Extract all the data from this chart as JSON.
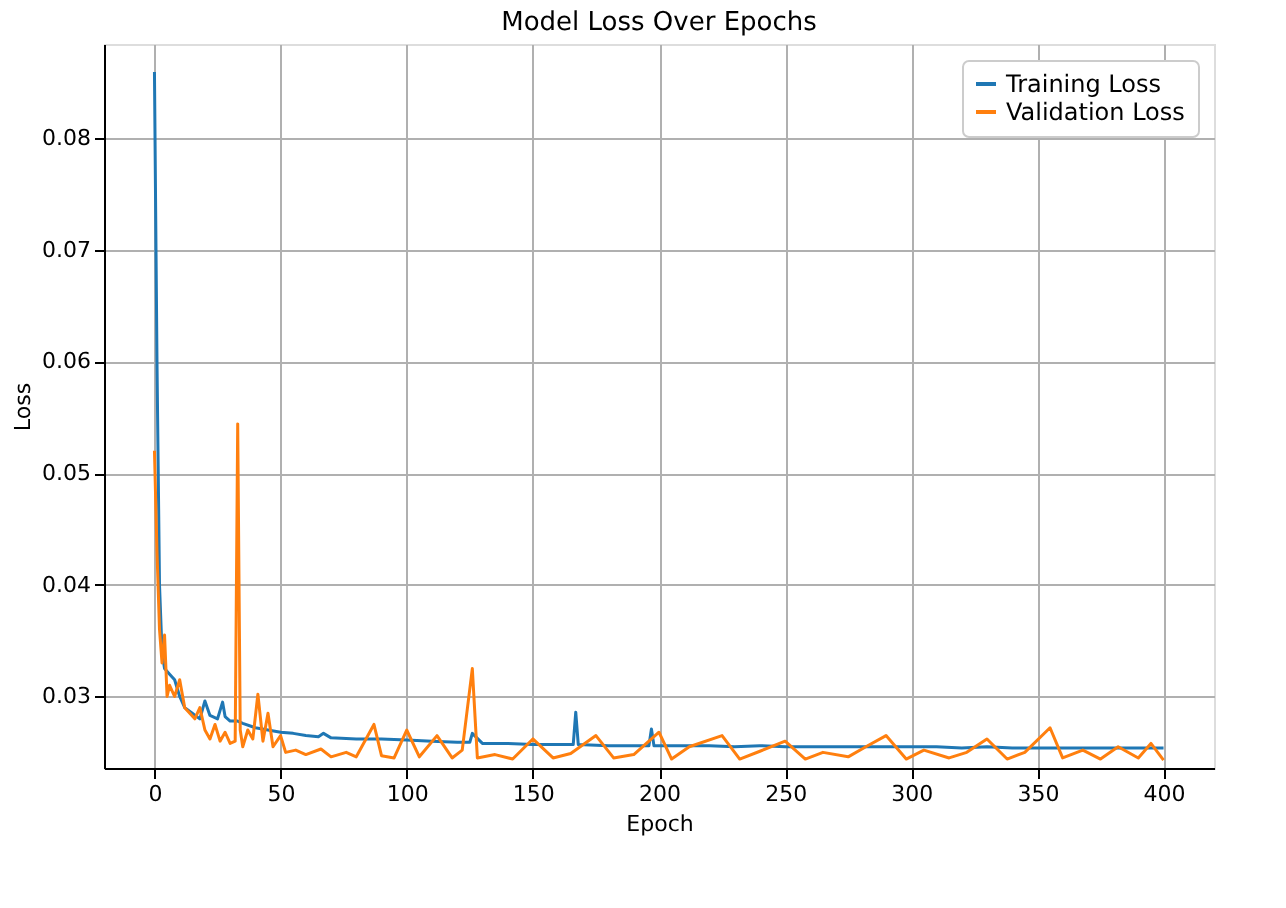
{
  "chart_data": {
    "type": "line",
    "title": "Model Loss Over Epochs",
    "xlabel": "Epoch",
    "ylabel": "Loss",
    "xlim": [
      -20,
      420
    ],
    "xticks": [
      0,
      50,
      100,
      150,
      200,
      250,
      300,
      350,
      400
    ],
    "ylim": [
      0.0236,
      0.0884
    ],
    "yticks": [
      0.03,
      0.04,
      0.05,
      0.06,
      0.07,
      0.08
    ],
    "grid": true,
    "legend": "top right",
    "line_style": "solid",
    "marker": "none",
    "series": [
      {
        "name": "Training Loss",
        "color": "#1f77b4",
        "x": [
          0,
          1,
          2,
          3,
          4,
          6,
          8,
          10,
          12,
          15,
          18,
          20,
          22,
          25,
          27,
          28,
          30,
          33,
          35,
          40,
          45,
          50,
          55,
          60,
          65,
          67,
          70,
          80,
          90,
          100,
          110,
          120,
          125,
          126,
          130,
          140,
          150,
          160,
          166,
          167,
          168,
          180,
          190,
          196,
          197,
          198,
          210,
          220,
          230,
          240,
          250,
          260,
          270,
          280,
          290,
          300,
          310,
          320,
          330,
          340,
          350,
          360,
          370,
          380,
          390,
          400
        ],
        "values": [
          0.0859,
          0.06,
          0.04,
          0.034,
          0.0325,
          0.032,
          0.0315,
          0.03,
          0.029,
          0.0285,
          0.028,
          0.0296,
          0.0283,
          0.028,
          0.0295,
          0.0282,
          0.0278,
          0.0278,
          0.0276,
          0.0272,
          0.027,
          0.0268,
          0.0267,
          0.0265,
          0.0264,
          0.0267,
          0.0263,
          0.0262,
          0.0262,
          0.0261,
          0.026,
          0.0259,
          0.0259,
          0.0267,
          0.0258,
          0.0258,
          0.0257,
          0.0257,
          0.0257,
          0.0286,
          0.0257,
          0.0256,
          0.0256,
          0.0256,
          0.0271,
          0.0256,
          0.0256,
          0.0256,
          0.0255,
          0.0256,
          0.0255,
          0.0255,
          0.0255,
          0.0255,
          0.0255,
          0.0255,
          0.0255,
          0.0254,
          0.0255,
          0.0254,
          0.0254,
          0.0254,
          0.0254,
          0.0254,
          0.0254,
          0.0254
        ]
      },
      {
        "name": "Validation Loss",
        "color": "#ff7f0e",
        "x": [
          0,
          1,
          2,
          3,
          4,
          5,
          6,
          8,
          10,
          12,
          14,
          16,
          18,
          20,
          22,
          24,
          26,
          28,
          30,
          32,
          33,
          34,
          35,
          37,
          39,
          41,
          43,
          45,
          47,
          50,
          52,
          56,
          60,
          66,
          70,
          76,
          80,
          87,
          90,
          95,
          100,
          105,
          112,
          118,
          122,
          126,
          128,
          135,
          142,
          150,
          158,
          165,
          175,
          182,
          190,
          200,
          205,
          212,
          225,
          232,
          240,
          250,
          258,
          265,
          275,
          282,
          290,
          298,
          305,
          315,
          322,
          330,
          338,
          345,
          355,
          360,
          368,
          375,
          382,
          390,
          395,
          400
        ],
        "values": [
          0.052,
          0.043,
          0.036,
          0.033,
          0.0355,
          0.03,
          0.031,
          0.03,
          0.0315,
          0.029,
          0.0285,
          0.028,
          0.029,
          0.027,
          0.0262,
          0.0275,
          0.026,
          0.0268,
          0.0258,
          0.026,
          0.0544,
          0.027,
          0.0255,
          0.027,
          0.0262,
          0.0302,
          0.026,
          0.0285,
          0.0255,
          0.0265,
          0.025,
          0.0252,
          0.0248,
          0.0253,
          0.0246,
          0.025,
          0.0246,
          0.0275,
          0.0247,
          0.0245,
          0.027,
          0.0246,
          0.0265,
          0.0245,
          0.0252,
          0.0325,
          0.0245,
          0.0248,
          0.0244,
          0.0262,
          0.0245,
          0.0249,
          0.0265,
          0.0245,
          0.0248,
          0.0268,
          0.0244,
          0.0255,
          0.0265,
          0.0244,
          0.0251,
          0.026,
          0.0244,
          0.025,
          0.0246,
          0.0255,
          0.0265,
          0.0244,
          0.0252,
          0.0245,
          0.025,
          0.0262,
          0.0244,
          0.025,
          0.0272,
          0.0245,
          0.0252,
          0.0244,
          0.0255,
          0.0245,
          0.0258,
          0.0243
        ]
      }
    ]
  }
}
